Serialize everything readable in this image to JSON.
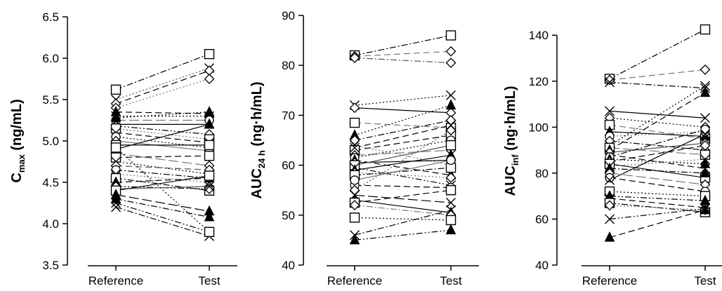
{
  "chart_data": [
    {
      "type": "line",
      "ylabel_main": "C",
      "ylabel_sub": "max",
      "ylabel_unit": " (ng/mL)",
      "categories": [
        "Reference",
        "Test"
      ],
      "ylim": [
        3.5,
        6.5
      ],
      "yticks": [
        "3.5",
        "4.0",
        "4.5",
        "5.0",
        "5.5",
        "6.0",
        "6.5"
      ],
      "grid": false,
      "series": [
        {
          "values": [
            5.62,
            6.05
          ],
          "marker": "square-open",
          "dash": "dashdot",
          "color": "#000000"
        },
        {
          "values": [
            5.5,
            5.88
          ],
          "marker": "x",
          "dash": "dotted",
          "color": "#555555"
        },
        {
          "values": [
            5.45,
            5.85
          ],
          "marker": "diamond-open",
          "dash": "dash",
          "color": "#000000"
        },
        {
          "values": [
            5.4,
            5.75
          ],
          "marker": "diamond-open",
          "dash": "dotted",
          "color": "#777777"
        },
        {
          "values": [
            5.35,
            5.33
          ],
          "marker": "triangle-filled",
          "dash": "dash",
          "color": "#000000"
        },
        {
          "values": [
            5.3,
            5.3
          ],
          "marker": "x",
          "dash": "dotted",
          "color": "#000000"
        },
        {
          "values": [
            5.25,
            5.25
          ],
          "marker": "circle-open",
          "dash": "longdash",
          "color": "#777777"
        },
        {
          "values": [
            5.2,
            5.2
          ],
          "marker": "triangle-filled",
          "dash": "solid",
          "color": "#000000"
        },
        {
          "values": [
            5.18,
            5.08
          ],
          "marker": "diamond-open",
          "dash": "dashdotdot",
          "color": "#000000"
        },
        {
          "values": [
            5.15,
            5.02
          ],
          "marker": "square-open",
          "dash": "dotted",
          "color": "#777777"
        },
        {
          "values": [
            5.1,
            4.98
          ],
          "marker": "x",
          "dash": "dash",
          "color": "#000000"
        },
        {
          "values": [
            5.05,
            4.92
          ],
          "marker": "circle-open",
          "dash": "dotted",
          "color": "#000000"
        },
        {
          "values": [
            5.0,
            4.88
          ],
          "marker": "diamond-open",
          "dash": "solid",
          "color": "#777777"
        },
        {
          "values": [
            4.95,
            4.95
          ],
          "marker": "square-open",
          "dash": "solid",
          "color": "#000000"
        },
        {
          "values": [
            4.9,
            5.2
          ],
          "marker": "triangle-filled",
          "dash": "solid",
          "color": "#000000"
        },
        {
          "values": [
            4.85,
            4.7
          ],
          "marker": "diamond-open",
          "dash": "longdash",
          "color": "#777777"
        },
        {
          "values": [
            4.8,
            4.82
          ],
          "marker": "square-open",
          "dash": "dash",
          "color": "#000000"
        },
        {
          "values": [
            4.75,
            4.6
          ],
          "marker": "x",
          "dash": "dotted",
          "color": "#000000"
        },
        {
          "values": [
            4.7,
            4.65
          ],
          "marker": "diamond-open",
          "dash": "dash",
          "color": "#555555"
        },
        {
          "values": [
            4.65,
            4.55
          ],
          "marker": "circle-open",
          "dash": "dashdot",
          "color": "#000000"
        },
        {
          "values": [
            4.6,
            4.5
          ],
          "marker": "x",
          "dash": "dotted",
          "color": "#777777"
        },
        {
          "values": [
            4.55,
            4.4
          ],
          "marker": "square-open",
          "dash": "dashdot",
          "color": "#000000"
        },
        {
          "values": [
            4.5,
            4.55
          ],
          "marker": "triangle-filled",
          "dash": "dash",
          "color": "#000000"
        },
        {
          "values": [
            4.45,
            4.42
          ],
          "marker": "diamond-open",
          "dash": "dashdotdot",
          "color": "#000000"
        },
        {
          "values": [
            4.42,
            4.45
          ],
          "marker": "x",
          "dash": "solid",
          "color": "#555555"
        },
        {
          "values": [
            4.4,
            4.58
          ],
          "marker": "square-open",
          "dash": "solid",
          "color": "#000000"
        },
        {
          "values": [
            4.35,
            4.15
          ],
          "marker": "triangle-filled",
          "dash": "longdash",
          "color": "#000000"
        },
        {
          "values": [
            4.3,
            4.08
          ],
          "marker": "triangle-filled",
          "dash": "dashdot",
          "color": "#000000"
        },
        {
          "values": [
            4.25,
            3.9
          ],
          "marker": "x",
          "dash": "dashdotdot",
          "color": "#000000"
        },
        {
          "values": [
            4.2,
            3.85
          ],
          "marker": "x",
          "dash": "dashdot",
          "color": "#000000"
        },
        {
          "values": [
            5.28,
            5.35
          ],
          "marker": "triangle-filled",
          "dash": "dotted",
          "color": "#000000"
        },
        {
          "values": [
            4.92,
            3.9
          ],
          "marker": "square-open",
          "dash": "dotted",
          "color": "#000000"
        }
      ]
    },
    {
      "type": "line",
      "ylabel_main": "AUC",
      "ylabel_sub": "24 h",
      "ylabel_unit": " (ng·h/mL)",
      "categories": [
        "Reference",
        "Test"
      ],
      "ylim": [
        40,
        90
      ],
      "yticks": [
        "40",
        "50",
        "60",
        "70",
        "80",
        "90"
      ],
      "grid": false,
      "series": [
        {
          "values": [
            82.0,
            86.0
          ],
          "marker": "square-open",
          "dash": "dashdot",
          "color": "#000000"
        },
        {
          "values": [
            81.8,
            82.8
          ],
          "marker": "diamond-open",
          "dash": "dash",
          "color": "#777777"
        },
        {
          "values": [
            81.5,
            80.5
          ],
          "marker": "diamond-open",
          "dash": "dashdot",
          "color": "#555555"
        },
        {
          "values": [
            72.0,
            74.0
          ],
          "marker": "x",
          "dash": "dotted",
          "color": "#000000"
        },
        {
          "values": [
            71.5,
            70.5
          ],
          "marker": "diamond-open",
          "dash": "solid",
          "color": "#000000"
        },
        {
          "values": [
            68.5,
            67.5
          ],
          "marker": "square-open",
          "dash": "dash",
          "color": "#777777"
        },
        {
          "values": [
            66.0,
            72.0
          ],
          "marker": "triangle-filled",
          "dash": "dotted",
          "color": "#000000"
        },
        {
          "values": [
            65.0,
            69.0
          ],
          "marker": "diamond-open",
          "dash": "dashdot",
          "color": "#000000"
        },
        {
          "values": [
            64.0,
            60.0
          ],
          "marker": "x",
          "dash": "dotted",
          "color": "#777777"
        },
        {
          "values": [
            63.0,
            66.0
          ],
          "marker": "square-open",
          "dash": "dash",
          "color": "#000000"
        },
        {
          "values": [
            62.0,
            63.0
          ],
          "marker": "diamond-open",
          "dash": "longdash",
          "color": "#777777"
        },
        {
          "values": [
            61.5,
            65.0
          ],
          "marker": "circle-open",
          "dash": "dotted",
          "color": "#000000"
        },
        {
          "values": [
            61.0,
            58.0
          ],
          "marker": "triangle-filled",
          "dash": "dash",
          "color": "#000000"
        },
        {
          "values": [
            60.5,
            61.0
          ],
          "marker": "diamond-open",
          "dash": "solid",
          "color": "#000000"
        },
        {
          "values": [
            60.0,
            64.0
          ],
          "marker": "square-open",
          "dash": "solid",
          "color": "#555555"
        },
        {
          "values": [
            59.5,
            56.0
          ],
          "marker": "x",
          "dash": "dashdotdot",
          "color": "#000000"
        },
        {
          "values": [
            59.0,
            62.0
          ],
          "marker": "triangle-filled",
          "dash": "solid",
          "color": "#000000"
        },
        {
          "values": [
            58.5,
            57.5
          ],
          "marker": "diamond-open",
          "dash": "dotted",
          "color": "#777777"
        },
        {
          "values": [
            58.0,
            59.5
          ],
          "marker": "square-open",
          "dash": "dashdot",
          "color": "#000000"
        },
        {
          "values": [
            56.0,
            55.5
          ],
          "marker": "circle-open",
          "dash": "dash",
          "color": "#000000"
        },
        {
          "values": [
            55.0,
            67.0
          ],
          "marker": "diamond-open",
          "dash": "dotted",
          "color": "#555555"
        },
        {
          "values": [
            54.0,
            52.5
          ],
          "marker": "x",
          "dash": "longdash",
          "color": "#000000"
        },
        {
          "values": [
            53.0,
            50.5
          ],
          "marker": "triangle-filled",
          "dash": "solid",
          "color": "#000000"
        },
        {
          "values": [
            52.5,
            55.0
          ],
          "marker": "square-open",
          "dash": "dash",
          "color": "#000000"
        },
        {
          "values": [
            52.0,
            50.0
          ],
          "marker": "diamond-open",
          "dash": "dashdot",
          "color": "#777777"
        },
        {
          "values": [
            49.5,
            49.0
          ],
          "marker": "square-open",
          "dash": "dotted",
          "color": "#000000"
        },
        {
          "values": [
            46.0,
            51.0
          ],
          "marker": "x",
          "dash": "dashdot",
          "color": "#000000"
        },
        {
          "values": [
            45.0,
            47.0
          ],
          "marker": "triangle-filled",
          "dash": "dashdotdot",
          "color": "#000000"
        },
        {
          "values": [
            63.5,
            68.0
          ],
          "marker": "x",
          "dash": "dash",
          "color": "#000000"
        },
        {
          "values": [
            57.0,
            61.0
          ],
          "marker": "circle-open",
          "dash": "solid",
          "color": "#777777"
        }
      ]
    },
    {
      "type": "line",
      "ylabel_main": "AUC",
      "ylabel_sub": "inf",
      "ylabel_unit": " (ng·h/mL)",
      "categories": [
        "Reference",
        "Test"
      ],
      "ylim": [
        40,
        148
      ],
      "yticks": [
        "40",
        "60",
        "80",
        "100",
        "120",
        "140"
      ],
      "grid": false,
      "series": [
        {
          "values": [
            121.0,
            142.5
          ],
          "marker": "square-open",
          "dash": "dashdot",
          "color": "#000000"
        },
        {
          "values": [
            120.5,
            125.0
          ],
          "marker": "diamond-open",
          "dash": "dash",
          "color": "#777777"
        },
        {
          "values": [
            119.5,
            117.0
          ],
          "marker": "x",
          "dash": "dashdot",
          "color": "#000000"
        },
        {
          "values": [
            107.0,
            104.0
          ],
          "marker": "x",
          "dash": "solid",
          "color": "#000000"
        },
        {
          "values": [
            104.0,
            100.0
          ],
          "marker": "diamond-open",
          "dash": "dotted",
          "color": "#000000"
        },
        {
          "values": [
            101.0,
            95.0
          ],
          "marker": "square-open",
          "dash": "dash",
          "color": "#777777"
        },
        {
          "values": [
            98.0,
            96.0
          ],
          "marker": "triangle-filled",
          "dash": "solid",
          "color": "#000000"
        },
        {
          "values": [
            96.0,
            98.0
          ],
          "marker": "circle-open",
          "dash": "dotted",
          "color": "#777777"
        },
        {
          "values": [
            94.0,
            90.0
          ],
          "marker": "diamond-open",
          "dash": "dashdot",
          "color": "#000000"
        },
        {
          "values": [
            92.0,
            118.0
          ],
          "marker": "x",
          "dash": "dotted",
          "color": "#000000"
        },
        {
          "values": [
            91.0,
            88.0
          ],
          "marker": "square-open",
          "dash": "longdash",
          "color": "#777777"
        },
        {
          "values": [
            90.0,
            115.0
          ],
          "marker": "triangle-filled",
          "dash": "dash",
          "color": "#000000"
        },
        {
          "values": [
            89.0,
            93.0
          ],
          "marker": "diamond-open",
          "dash": "solid",
          "color": "#555555"
        },
        {
          "values": [
            88.0,
            82.0
          ],
          "marker": "x",
          "dash": "dash",
          "color": "#000000"
        },
        {
          "values": [
            87.0,
            99.0
          ],
          "marker": "circle-open",
          "dash": "dashdot",
          "color": "#000000"
        },
        {
          "values": [
            86.0,
            84.0
          ],
          "marker": "triangle-filled",
          "dash": "dotted",
          "color": "#000000"
        },
        {
          "values": [
            85.0,
            92.0
          ],
          "marker": "diamond-open",
          "dash": "dash",
          "color": "#000000"
        },
        {
          "values": [
            84.0,
            78.0
          ],
          "marker": "square-open",
          "dash": "solid",
          "color": "#000000"
        },
        {
          "values": [
            83.0,
            86.0
          ],
          "marker": "x",
          "dash": "dotted",
          "color": "#777777"
        },
        {
          "values": [
            82.0,
            80.0
          ],
          "marker": "triangle-filled",
          "dash": "dashdot",
          "color": "#000000"
        },
        {
          "values": [
            80.0,
            75.0
          ],
          "marker": "diamond-open",
          "dash": "longdash",
          "color": "#777777"
        },
        {
          "values": [
            78.0,
            72.0
          ],
          "marker": "circle-open",
          "dash": "dash",
          "color": "#000000"
        },
        {
          "values": [
            77.0,
            97.0
          ],
          "marker": "x",
          "dash": "solid",
          "color": "#000000"
        },
        {
          "values": [
            72.0,
            70.0
          ],
          "marker": "square-open",
          "dash": "dotted",
          "color": "#000000"
        },
        {
          "values": [
            70.0,
            68.0
          ],
          "marker": "triangle-filled",
          "dash": "dashdotdot",
          "color": "#000000"
        },
        {
          "values": [
            69.0,
            65.0
          ],
          "marker": "x",
          "dash": "dash",
          "color": "#000000"
        },
        {
          "values": [
            67.0,
            63.0
          ],
          "marker": "square-open",
          "dash": "dashdot",
          "color": "#000000"
        },
        {
          "values": [
            66.0,
            64.0
          ],
          "marker": "diamond-open",
          "dash": "dotted",
          "color": "#777777"
        },
        {
          "values": [
            60.0,
            64.5
          ],
          "marker": "x",
          "dash": "dashdotdot",
          "color": "#000000"
        },
        {
          "values": [
            52.0,
            64.0
          ],
          "marker": "triangle-filled",
          "dash": "dash",
          "color": "#000000"
        }
      ]
    }
  ]
}
